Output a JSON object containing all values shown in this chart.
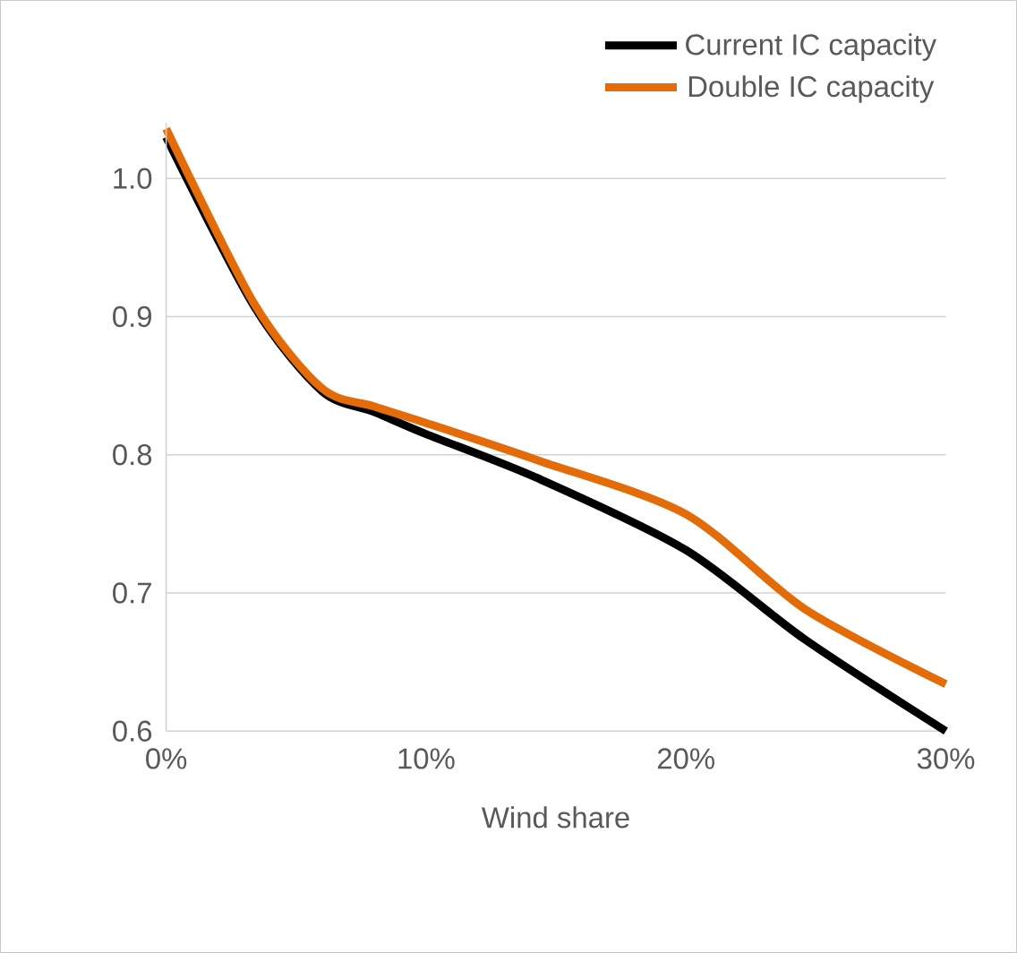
{
  "chart_data": {
    "type": "line",
    "xlabel": "Wind share",
    "xlim": [
      0,
      30
    ],
    "xticks": [
      {
        "value": 0,
        "label": "0%"
      },
      {
        "value": 10,
        "label": "10%"
      },
      {
        "value": 20,
        "label": "20%"
      },
      {
        "value": 30,
        "label": "30%"
      }
    ],
    "ylim": [
      0.6,
      1.04
    ],
    "yticks": [
      0.6,
      0.7,
      0.8,
      0.9,
      {
        "value": 1.0,
        "label": "1.0"
      }
    ],
    "grid": "y",
    "legend": "top right",
    "marker": "none",
    "line_style": "solid",
    "series": [
      {
        "name": "Current IC capacity",
        "color": "#000000",
        "x": [
          0,
          3.4,
          6,
          8,
          10,
          14.3,
          20,
          24.6,
          30
        ],
        "values": [
          1.03,
          0.907,
          0.846,
          0.831,
          0.815,
          0.783,
          0.731,
          0.666,
          0.6
        ]
      },
      {
        "name": "Double IC capacity",
        "color": "#e36c09",
        "x": [
          0,
          3.4,
          6,
          8,
          10,
          14.3,
          20,
          24.6,
          30
        ],
        "values": [
          1.036,
          0.909,
          0.848,
          0.835,
          0.823,
          0.796,
          0.757,
          0.688,
          0.634
        ]
      }
    ]
  }
}
